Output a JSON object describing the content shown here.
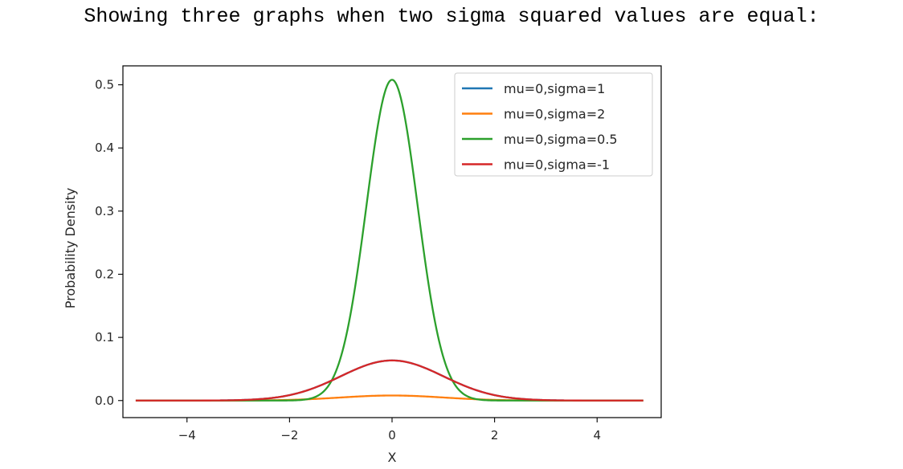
{
  "heading": "Showing three graphs when two sigma squared values are equal:",
  "chart_data": {
    "type": "line",
    "xlabel": "X",
    "ylabel": "Probability Density",
    "xlim": [
      -5.25,
      5.25
    ],
    "ylim": [
      -0.027,
      0.53
    ],
    "xticks": [
      -4,
      -2,
      0,
      2,
      4
    ],
    "xtick_labels": [
      "−4",
      "−2",
      "0",
      "2",
      "4"
    ],
    "yticks": [
      0.0,
      0.1,
      0.2,
      0.3,
      0.4,
      0.5
    ],
    "ytick_labels": [
      "0.0",
      "0.1",
      "0.2",
      "0.3",
      "0.4",
      "0.5"
    ],
    "x_range": [
      -5,
      4.9
    ],
    "legend_position": "upper-right",
    "grid": false,
    "series": [
      {
        "name": "mu=0,sigma=1",
        "color": "#1f77b4",
        "peak": 0.0635,
        "width": 1.0
      },
      {
        "name": "mu=0,sigma=2",
        "color": "#ff7f0e",
        "peak": 0.008,
        "width": 1.0
      },
      {
        "name": "mu=0,sigma=0.5",
        "color": "#2ca02c",
        "peak": 0.508,
        "width": 0.5
      },
      {
        "name": "mu=0,sigma=-1",
        "color": "#d62728",
        "peak": 0.0635,
        "width": 1.0
      }
    ]
  }
}
